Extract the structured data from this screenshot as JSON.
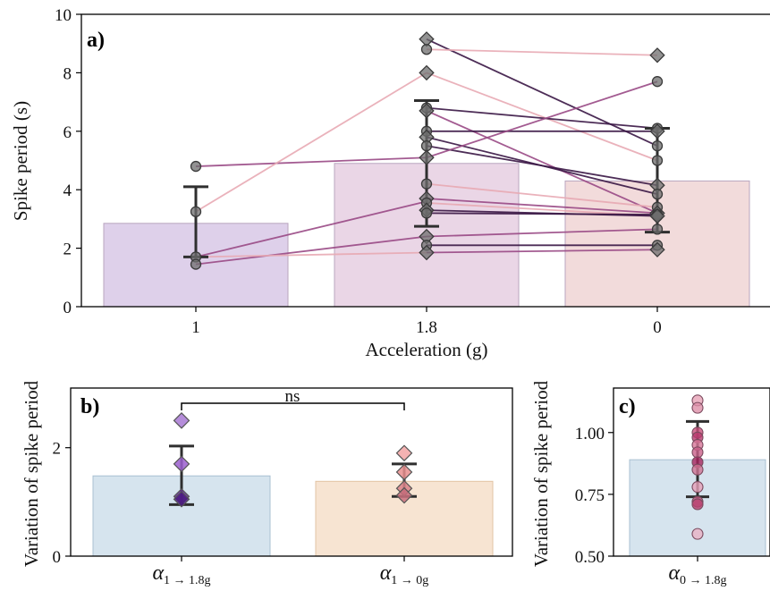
{
  "panel_a": {
    "label": "a)",
    "xlabel": "Acceleration (g)",
    "ylabel": "Spike period (s)",
    "yticks": [
      "0",
      "2",
      "4",
      "6",
      "8",
      "10"
    ]
  },
  "panel_b": {
    "label": "b)",
    "ylabel": "Variation of spike period",
    "yticks": [
      "0",
      "2"
    ],
    "sig_label": "ns",
    "xtick_1": {
      "base": "α",
      "sub": "1 → 1.8g"
    },
    "xtick_2": {
      "base": "α",
      "sub": "1 → 0g"
    }
  },
  "panel_c": {
    "label": "c)",
    "ylabel": "Variation of spike period",
    "yticks": [
      "0.50",
      "0.75",
      "1.00"
    ],
    "xtick_1": {
      "base": "α",
      "sub": "0 → 1.8g"
    }
  },
  "colors": {
    "bar_1g": "#ded0ea",
    "bar_18g": "#ead6e6",
    "bar_0g": "#f2dbdb",
    "bar_blue": "#d6e4ee",
    "bar_orange": "#f7e4d2",
    "line_dark": "#3a1745",
    "line_mid": "#9a4a86",
    "line_light": "#e8aab4"
  },
  "chart_data": [
    {
      "type": "bar",
      "panel": "a",
      "categories": [
        "1",
        "1.8",
        "0"
      ],
      "values": [
        2.85,
        4.9,
        4.3
      ],
      "errors": [
        [
          1.7,
          4.1
        ],
        [
          2.75,
          7.05
        ],
        [
          2.55,
          6.1
        ]
      ],
      "ylim": [
        0,
        10
      ],
      "xlabel": "Acceleration (g)",
      "ylabel": "Spike period (s)",
      "paired_lines": [
        {
          "from": [
            0,
            4.8
          ],
          "to": [
            1,
            5.1
          ],
          "shade": "mid"
        },
        {
          "from": [
            0,
            3.25
          ],
          "to": [
            1,
            8.0
          ],
          "shade": "light"
        },
        {
          "from": [
            0,
            1.7
          ],
          "to": [
            1,
            3.6
          ],
          "shade": "mid"
        },
        {
          "from": [
            0,
            1.45
          ],
          "to": [
            1,
            2.4
          ],
          "shade": "mid"
        },
        {
          "from": [
            0,
            1.7
          ],
          "to": [
            1,
            1.85
          ],
          "shade": "light"
        },
        {
          "from": [
            1,
            9.15
          ],
          "to": [
            2,
            5.5
          ],
          "shade": "dark"
        },
        {
          "from": [
            1,
            8.8
          ],
          "to": [
            2,
            8.6
          ],
          "shade": "light"
        },
        {
          "from": [
            1,
            8.0
          ],
          "to": [
            2,
            5.0
          ],
          "shade": "light"
        },
        {
          "from": [
            1,
            6.8
          ],
          "to": [
            2,
            6.1
          ],
          "shade": "dark"
        },
        {
          "from": [
            1,
            6.7
          ],
          "to": [
            2,
            3.2
          ],
          "shade": "mid"
        },
        {
          "from": [
            1,
            6.0
          ],
          "to": [
            2,
            6.0
          ],
          "shade": "dark"
        },
        {
          "from": [
            1,
            5.8
          ],
          "to": [
            2,
            3.85
          ],
          "shade": "dark"
        },
        {
          "from": [
            1,
            5.5
          ],
          "to": [
            2,
            4.15
          ],
          "shade": "dark"
        },
        {
          "from": [
            1,
            5.1
          ],
          "to": [
            2,
            7.7
          ],
          "shade": "mid"
        },
        {
          "from": [
            1,
            4.2
          ],
          "to": [
            2,
            3.4
          ],
          "shade": "light"
        },
        {
          "from": [
            1,
            3.7
          ],
          "to": [
            2,
            3.2
          ],
          "shade": "mid"
        },
        {
          "from": [
            1,
            3.55
          ],
          "to": [
            2,
            3.1
          ],
          "shade": "light"
        },
        {
          "from": [
            1,
            3.3
          ],
          "to": [
            2,
            3.1
          ],
          "shade": "dark"
        },
        {
          "from": [
            1,
            3.2
          ],
          "to": [
            2,
            3.15
          ],
          "shade": "dark"
        },
        {
          "from": [
            1,
            2.4
          ],
          "to": [
            2,
            2.65
          ],
          "shade": "mid"
        },
        {
          "from": [
            1,
            2.1
          ],
          "to": [
            2,
            2.1
          ],
          "shade": "dark"
        },
        {
          "from": [
            1,
            1.85
          ],
          "to": [
            2,
            1.95
          ],
          "shade": "mid"
        }
      ],
      "points": {
        "1": [
          4.8,
          3.25,
          1.7,
          1.45
        ],
        "1.8": [
          9.15,
          8.8,
          8.0,
          6.8,
          6.7,
          6.0,
          5.8,
          5.5,
          5.1,
          4.2,
          3.7,
          3.55,
          3.3,
          3.2,
          2.4,
          2.1,
          1.85
        ],
        "0": [
          8.6,
          7.7,
          6.1,
          6.0,
          5.5,
          5.0,
          4.15,
          3.85,
          3.4,
          3.2,
          3.15,
          3.1,
          3.1,
          2.65,
          2.1,
          1.95
        ]
      }
    },
    {
      "type": "bar",
      "panel": "b",
      "categories": [
        "α 1 → 1.8g",
        "α 1 → 0g"
      ],
      "values": [
        1.48,
        1.38
      ],
      "errors": [
        [
          0.95,
          2.03
        ],
        [
          1.1,
          1.7
        ]
      ],
      "ylim": [
        0,
        3.1
      ],
      "ylabel": "Variation of spike period",
      "points": [
        [
          2.5,
          1.7,
          1.1,
          1.05
        ],
        [
          1.9,
          1.55,
          1.25,
          1.12
        ]
      ],
      "annotation": "ns"
    },
    {
      "type": "bar",
      "panel": "c",
      "categories": [
        "α 0 → 1.8g"
      ],
      "values": [
        0.89
      ],
      "errors": [
        [
          0.74,
          1.045
        ]
      ],
      "ylim": [
        0.5,
        1.18
      ],
      "ylabel": "Variation of spike period",
      "points": [
        1.13,
        1.1,
        1.0,
        0.98,
        0.95,
        0.92,
        0.88,
        0.85,
        0.78,
        0.72,
        0.71,
        0.59
      ]
    }
  ]
}
